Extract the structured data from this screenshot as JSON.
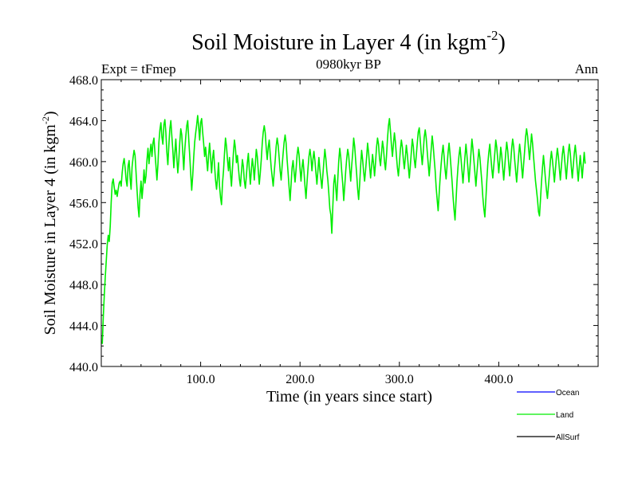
{
  "chart_data": {
    "type": "line",
    "title": "Soil Moisture in Layer 4 (in kgm",
    "title_sup": "-2",
    "title_end": ")",
    "subtitle_left": "Expt = tFmep",
    "subtitle_center": "0980kyr BP",
    "subtitle_right": "Ann",
    "xlabel": "Time (in years since start)",
    "ylabel": "Soil Moisture in Layer 4 (in kgm",
    "ylabel_sup": "-2",
    "ylabel_end": ")",
    "xlim": [
      0,
      500
    ],
    "ylim": [
      440,
      468
    ],
    "x_ticks": [
      100,
      200,
      300,
      400
    ],
    "x_tick_labels": [
      "100.0",
      "200.0",
      "300.0",
      "400.0"
    ],
    "y_ticks": [
      440,
      444,
      448,
      452,
      456,
      460,
      464,
      468
    ],
    "y_tick_labels": [
      "440.0",
      "444.0",
      "448.0",
      "452.0",
      "456.0",
      "460.0",
      "464.0",
      "468.0"
    ],
    "legend_position": "bottom-right",
    "series": [
      {
        "name": "Ocean",
        "color": "#0000ff",
        "values": []
      },
      {
        "name": "Land",
        "color": "#00ee00",
        "x_start": 1,
        "x_step": 1,
        "values": [
          442.2,
          444.8,
          446.9,
          448.7,
          450.3,
          451.9,
          452.8,
          452.2,
          453.7,
          456.1,
          457.9,
          458.3,
          457.5,
          456.8,
          457.2,
          456.6,
          457.3,
          457.9,
          458.1,
          457.6,
          458.9,
          459.8,
          460.3,
          459.4,
          458.2,
          457.6,
          459.6,
          460.1,
          458.4,
          457.3,
          459.5,
          460.4,
          461.1,
          460.6,
          458.9,
          457.2,
          455.6,
          454.6,
          456.8,
          458.1,
          456.4,
          457.6,
          459.2,
          457.9,
          458.6,
          460.2,
          461.3,
          459.8,
          460.9,
          461.7,
          460.5,
          461.8,
          462.3,
          460.9,
          459.6,
          458.2,
          459.7,
          461.9,
          463.1,
          463.8,
          462.4,
          461.7,
          463.6,
          464.1,
          462.8,
          460.9,
          459.7,
          461.6,
          463.2,
          464.0,
          462.5,
          461.1,
          459.4,
          460.8,
          462.2,
          460.4,
          458.9,
          460.1,
          461.9,
          463.2,
          462.6,
          460.9,
          459.2,
          461.1,
          462.4,
          463.5,
          464.0,
          462.2,
          460.6,
          458.8,
          457.2,
          458.6,
          460.4,
          461.9,
          462.8,
          463.6,
          464.5,
          463.4,
          462.1,
          463.8,
          464.2,
          462.9,
          461.8,
          460.5,
          461.4,
          460.2,
          459.1,
          460.6,
          461.8,
          460.4,
          458.9,
          460.3,
          461.1,
          459.6,
          458.2,
          457.3,
          458.4,
          459.9,
          457.6,
          456.5,
          455.8,
          457.9,
          459.1,
          460.8,
          462.3,
          461.5,
          460.2,
          459.1,
          460.4,
          458.8,
          457.6,
          459.3,
          460.9,
          462.1,
          461.3,
          459.9,
          460.6,
          459.4,
          458.3,
          457.6,
          458.9,
          460.2,
          459.5,
          458.1,
          457.4,
          458.6,
          459.9,
          460.8,
          459.2,
          457.8,
          459.1,
          460.3,
          459.5,
          458.2,
          459.7,
          461.2,
          460.5,
          459.1,
          457.8,
          458.9,
          460.2,
          461.8,
          462.9,
          463.5,
          462.8,
          461.3,
          460.2,
          461.4,
          462.1,
          460.7,
          459.4,
          458.5,
          457.6,
          458.9,
          460.1,
          461.5,
          462.3,
          461.6,
          460.4,
          459.1,
          458.2,
          459.6,
          460.8,
          461.9,
          462.6,
          461.8,
          460.2,
          458.9,
          457.5,
          456.2,
          457.8,
          459.4,
          460.1,
          459.0,
          458.0,
          459.2,
          460.6,
          461.4,
          460.7,
          459.3,
          458.1,
          459.4,
          460.2,
          459.0,
          457.6,
          456.4,
          457.9,
          459.3,
          460.5,
          461.2,
          460.4,
          459.1,
          460.2,
          461.0,
          460.1,
          458.9,
          457.8,
          459.1,
          460.4,
          459.2,
          458.3,
          457.4,
          458.7,
          460.0,
          461.2,
          460.3,
          459.1,
          458.2,
          456.9,
          455.4,
          454.8,
          453.0,
          455.6,
          457.9,
          458.7,
          457.4,
          456.2,
          458.3,
          460.1,
          461.3,
          460.4,
          459.0,
          457.8,
          456.2,
          457.6,
          459.1,
          460.3,
          461.2,
          460.6,
          459.3,
          458.1,
          459.6,
          460.8,
          462.3,
          461.5,
          460.1,
          458.8,
          457.3,
          456.3,
          457.8,
          459.6,
          461.1,
          460.2,
          459.0,
          458.1,
          459.2,
          460.4,
          461.8,
          460.9,
          459.6,
          458.4,
          459.5,
          460.7,
          459.8,
          458.6,
          459.9,
          461.4,
          462.3,
          461.7,
          460.3,
          459.6,
          460.8,
          462.0,
          461.3,
          460.0,
          459.2,
          460.5,
          462.2,
          463.5,
          464.2,
          463.0,
          461.6,
          460.5,
          461.7,
          462.8,
          461.9,
          460.6,
          459.4,
          458.6,
          459.8,
          461.2,
          462.1,
          461.4,
          460.2,
          459.3,
          460.4,
          461.6,
          460.7,
          459.5,
          458.4,
          459.6,
          460.9,
          462.2,
          461.5,
          460.2,
          459.4,
          460.6,
          461.8,
          462.9,
          463.3,
          462.1,
          460.8,
          459.7,
          460.9,
          462.4,
          463.1,
          462.3,
          461.0,
          459.8,
          458.6,
          459.9,
          461.2,
          462.5,
          461.6,
          460.3,
          459.1,
          457.5,
          456.3,
          455.2,
          456.8,
          458.4,
          459.7,
          460.8,
          461.6,
          460.5,
          459.2,
          458.3,
          459.6,
          460.9,
          461.8,
          460.7,
          459.4,
          458.1,
          456.6,
          455.3,
          454.3,
          456.2,
          458.1,
          459.5,
          460.6,
          461.4,
          460.3,
          459.1,
          457.9,
          459.2,
          460.5,
          461.7,
          460.6,
          459.3,
          458.0,
          459.4,
          460.8,
          462.2,
          461.3,
          460.1,
          458.9,
          457.6,
          458.9,
          460.1,
          461.2,
          460.4,
          459.2,
          458.0,
          456.5,
          455.4,
          454.6,
          456.3,
          458.2,
          459.8,
          460.9,
          461.7,
          460.5,
          459.3,
          458.4,
          459.6,
          460.8,
          462.1,
          461.4,
          460.2,
          458.9,
          460.1,
          461.4,
          460.6,
          459.4,
          458.2,
          459.5,
          460.8,
          461.9,
          461.1,
          459.8,
          458.6,
          459.9,
          461.3,
          462.2,
          461.5,
          460.2,
          459.1,
          458.0,
          459.3,
          460.6,
          461.7,
          460.8,
          459.5,
          458.4,
          459.7,
          461.0,
          462.4,
          463.2,
          462.5,
          461.3,
          460.2,
          461.4,
          462.7,
          461.8,
          460.5,
          459.3,
          458.1,
          457.2,
          456.3,
          455.1,
          454.7,
          456.3,
          458.0,
          459.4,
          460.6,
          459.5,
          458.3,
          457.2,
          456.4,
          457.6,
          458.8,
          460.1,
          461.0,
          460.2,
          459.1,
          458.0,
          459.2,
          460.4,
          461.3,
          460.5,
          459.3,
          458.2,
          459.5,
          460.7,
          461.5,
          460.6,
          459.4,
          458.3,
          459.6,
          460.9,
          461.7,
          460.8,
          459.5,
          458.4,
          459.6,
          460.8,
          461.6,
          460.6,
          459.3,
          458.1,
          459.4,
          460.6,
          459.5,
          458.4,
          459.7,
          460.9,
          459.8
        ]
      },
      {
        "name": "AllSurf",
        "color": "#000000",
        "values": []
      }
    ]
  }
}
